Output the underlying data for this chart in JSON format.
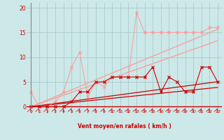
{
  "x": [
    0,
    1,
    2,
    3,
    4,
    5,
    6,
    7,
    8,
    9,
    10,
    11,
    12,
    13,
    14,
    15,
    16,
    17,
    18,
    19,
    20,
    21,
    22,
    23
  ],
  "scatter_light": [
    3,
    0,
    0,
    1,
    3,
    8,
    11,
    2,
    5,
    4,
    6,
    6,
    6,
    19,
    15,
    15,
    15,
    15,
    15,
    15,
    15,
    15,
    16,
    16
  ],
  "scatter_dark": [
    0,
    0,
    0,
    0,
    0,
    1,
    3,
    3,
    5,
    5,
    6,
    6,
    6,
    6,
    6,
    8,
    3,
    6,
    5,
    3,
    3,
    8,
    8,
    5
  ],
  "linear_light1": [
    0,
    0.58,
    1.16,
    1.74,
    2.32,
    2.9,
    3.48,
    4.06,
    4.64,
    5.22,
    5.8,
    6.38,
    6.96,
    7.54,
    8.12,
    8.7,
    9.28,
    9.86,
    10.44,
    11.02,
    11.6,
    12.18,
    12.76,
    13.34
  ],
  "linear_light2": [
    0,
    0.68,
    1.36,
    2.04,
    2.72,
    3.4,
    4.08,
    4.76,
    5.44,
    6.12,
    6.8,
    7.48,
    8.16,
    8.84,
    9.52,
    10.2,
    10.88,
    11.56,
    12.24,
    12.92,
    13.6,
    14.28,
    14.96,
    15.64
  ],
  "linear_dark1": [
    0,
    0.17,
    0.34,
    0.51,
    0.68,
    0.85,
    1.02,
    1.19,
    1.36,
    1.53,
    1.7,
    1.87,
    2.04,
    2.21,
    2.38,
    2.55,
    2.72,
    2.89,
    3.06,
    3.23,
    3.4,
    3.57,
    3.74,
    3.91
  ],
  "linear_dark2": [
    0,
    0.22,
    0.44,
    0.66,
    0.88,
    1.1,
    1.32,
    1.54,
    1.76,
    1.98,
    2.2,
    2.42,
    2.64,
    2.86,
    3.08,
    3.3,
    3.52,
    3.74,
    3.96,
    4.18,
    4.4,
    4.62,
    4.84,
    5.06
  ],
  "bg_color": "#cce8e8",
  "grid_color": "#aacccc",
  "color_light": "#ff9999",
  "color_dark": "#cc0000",
  "ylabel_ticks": [
    0,
    5,
    10,
    15,
    20
  ],
  "xlabel": "Vent moyen/en rafales ( km/h )",
  "ylim": [
    -0.5,
    21
  ],
  "xlim": [
    -0.5,
    23.5
  ]
}
